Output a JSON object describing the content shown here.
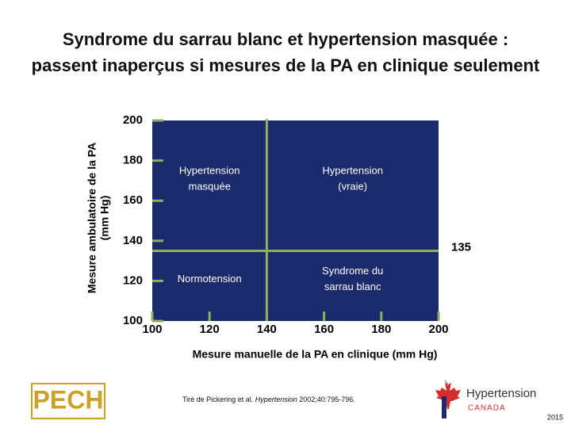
{
  "chart_data": {
    "type": "quadrant",
    "title": [
      "Syndrome du sarrau blanc et hypertension masquée :",
      "passent inaperçus si mesures de la PA en clinique seulement"
    ],
    "x_label": "Mesure manuelle de la PA en clinique (mm Hg)",
    "y_label": [
      "Mesure ambulatoire de la PA",
      "(mm Hg)"
    ],
    "xlim": [
      100,
      200
    ],
    "ylim": [
      100,
      200
    ],
    "xticks": [
      100,
      120,
      140,
      160,
      180,
      200
    ],
    "yticks": [
      100,
      120,
      140,
      160,
      180,
      200
    ],
    "thresholds": {
      "x": 140,
      "y": 135
    },
    "plot_color": "#1b2a6b",
    "line_color": "#8fae5b",
    "quadrants": [
      {
        "position": "top-left",
        "label": [
          "Hypertension",
          "masquée"
        ]
      },
      {
        "position": "top-right",
        "label": [
          "Hypertension",
          "(vraie)"
        ]
      },
      {
        "position": "bottom-left",
        "label": [
          "Normotension"
        ]
      },
      {
        "position": "bottom-right",
        "label": [
          "Syndrome du",
          "sarrau blanc"
        ]
      }
    ]
  },
  "footer": {
    "citation": [
      "Tiré de Pickering et al. ",
      "Hypertension",
      " 2002;40:795-796."
    ],
    "logo_left": "PECH",
    "logo_right": [
      "Hypertension",
      "CANADA"
    ],
    "year": "2015"
  }
}
